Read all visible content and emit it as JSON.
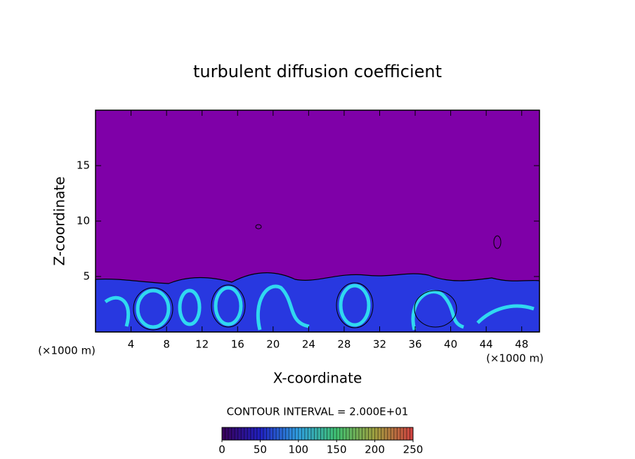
{
  "chart_data": {
    "type": "contour",
    "title": "turbulent diffusion coefficient",
    "xlabel": "X-coordinate",
    "ylabel": "Z-coordinate",
    "x_unit_label": "(×1000 m)",
    "y_unit_label": "(×1000 m)",
    "xlim": [
      0,
      50
    ],
    "ylim": [
      0,
      20
    ],
    "xticks": [
      4,
      8,
      12,
      16,
      20,
      24,
      28,
      32,
      36,
      40,
      44,
      48
    ],
    "yticks": [
      5,
      10,
      15
    ],
    "contour_interval_label": "CONTOUR INTERVAL = 2.000E+01",
    "colorbar": {
      "lim": [
        0,
        250
      ],
      "ticks": [
        0,
        50,
        100,
        150,
        200,
        250
      ],
      "colors": [
        "#3a0058",
        "#2020c0",
        "#30a0e0",
        "#40c070",
        "#a0a040",
        "#d04040"
      ]
    }
  }
}
